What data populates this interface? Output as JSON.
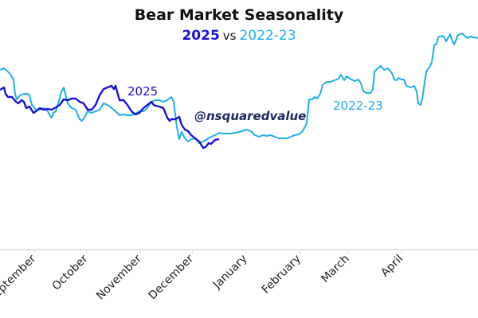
{
  "chart_data": {
    "type": "line",
    "title": "Bear Market Seasonality",
    "subtitle": {
      "series1": "2025",
      "vs": "vs",
      "series2": "2022-23"
    },
    "xlabel": "",
    "ylabel": "",
    "x_unit": "days since Aug 1 (approx.)",
    "xlim": [
      11,
      287
    ],
    "ylim": [
      0,
      300
    ],
    "grid": false,
    "x_ticks": [
      {
        "label": "September",
        "day": 31
      },
      {
        "label": "October",
        "day": 61
      },
      {
        "label": "November",
        "day": 92
      },
      {
        "label": "December",
        "day": 122
      },
      {
        "label": "January",
        "day": 153
      },
      {
        "label": "February",
        "day": 184
      },
      {
        "label": "March",
        "day": 212
      },
      {
        "label": "April",
        "day": 243
      }
    ],
    "annotations": {
      "label_2025": "2025",
      "label_2022": "2022-23",
      "watermark": "@nsquaredvalue"
    },
    "colors": {
      "s2025": "#1a12d6",
      "s2022": "#1eaee8",
      "watermark": "#1b2a5e"
    },
    "series": [
      {
        "name": "2022-23",
        "points": [
          [
            11,
            226
          ],
          [
            13.3,
            228
          ],
          [
            16.5,
            222
          ],
          [
            18.8,
            214
          ],
          [
            19.7,
            196
          ],
          [
            20.7,
            189
          ],
          [
            22.5,
            194
          ],
          [
            24.8,
            196
          ],
          [
            27.1,
            196
          ],
          [
            28,
            194
          ],
          [
            29.4,
            182
          ],
          [
            31.7,
            176
          ],
          [
            34,
            176
          ],
          [
            36.3,
            178
          ],
          [
            38.6,
            174
          ],
          [
            40,
            168
          ],
          [
            40.9,
            166
          ],
          [
            41.8,
            172
          ],
          [
            43.2,
            174
          ],
          [
            44.6,
            184
          ],
          [
            46.4,
            198
          ],
          [
            47.8,
            204
          ],
          [
            48.7,
            196
          ],
          [
            50.1,
            184
          ],
          [
            52.4,
            178
          ],
          [
            54.7,
            176
          ],
          [
            57,
            164
          ],
          [
            58.4,
            162
          ],
          [
            60.2,
            168
          ],
          [
            61.6,
            174
          ],
          [
            63.9,
            172
          ],
          [
            66.2,
            174
          ],
          [
            68.5,
            176
          ],
          [
            70.8,
            184
          ],
          [
            73.1,
            182
          ],
          [
            75.4,
            178
          ],
          [
            77.7,
            174
          ],
          [
            80,
            169
          ],
          [
            82.3,
            170
          ],
          [
            84.6,
            169
          ],
          [
            86.9,
            169
          ],
          [
            89.2,
            171
          ],
          [
            91.5,
            174
          ],
          [
            93.8,
            174
          ],
          [
            96.1,
            178
          ],
          [
            98.4,
            186
          ],
          [
            100.7,
            188
          ],
          [
            103,
            188
          ],
          [
            105.3,
            186
          ],
          [
            107.6,
            188
          ],
          [
            109.9,
            192
          ],
          [
            111.3,
            186
          ],
          [
            113.1,
            154
          ],
          [
            114.5,
            139
          ],
          [
            115.9,
            148
          ],
          [
            117.7,
            140
          ],
          [
            119.6,
            136
          ],
          [
            121.4,
            139
          ],
          [
            123.7,
            140
          ],
          [
            126,
            134
          ],
          [
            128.3,
            136
          ],
          [
            130.6,
            139
          ],
          [
            132.9,
            142
          ],
          [
            135.2,
            144
          ],
          [
            137.5,
            147
          ],
          [
            139.8,
            146
          ],
          [
            144.4,
            146
          ],
          [
            149,
            148
          ],
          [
            153.6,
            151
          ],
          [
            155.9,
            149
          ],
          [
            158.2,
            144
          ],
          [
            160.5,
            142
          ],
          [
            162.8,
            144
          ],
          [
            165.1,
            143
          ],
          [
            167.4,
            144
          ],
          [
            169.7,
            142
          ],
          [
            172,
            140
          ],
          [
            176.6,
            140
          ],
          [
            178.9,
            142
          ],
          [
            181.2,
            144
          ],
          [
            183.5,
            145
          ],
          [
            185.8,
            149
          ],
          [
            188.1,
            159
          ],
          [
            189.5,
            189
          ],
          [
            191.3,
            189
          ],
          [
            192.7,
            192
          ],
          [
            194.1,
            190
          ],
          [
            195.9,
            196
          ],
          [
            197.3,
            207
          ],
          [
            199.6,
            211
          ],
          [
            201.9,
            211
          ],
          [
            204.2,
            213
          ],
          [
            206.5,
            215
          ],
          [
            207.9,
            220
          ],
          [
            209.7,
            213
          ],
          [
            211.1,
            218
          ],
          [
            212.5,
            216
          ],
          [
            215.7,
            212
          ],
          [
            218,
            214
          ],
          [
            219.4,
            209
          ],
          [
            220.8,
            199
          ],
          [
            222.6,
            197
          ],
          [
            224.9,
            197
          ],
          [
            226.3,
            202
          ],
          [
            227.2,
            224
          ],
          [
            228.1,
            226
          ],
          [
            229.5,
            229
          ],
          [
            230.9,
            231
          ],
          [
            232.7,
            226
          ],
          [
            235,
            228
          ],
          [
            237.3,
            222
          ],
          [
            238.7,
            214
          ],
          [
            240.1,
            213
          ],
          [
            241,
            216
          ],
          [
            242.8,
            214
          ],
          [
            244.2,
            214
          ],
          [
            245.6,
            206
          ],
          [
            247.9,
            204
          ],
          [
            250.2,
            206
          ],
          [
            251.6,
            199
          ],
          [
            252.5,
            184
          ],
          [
            253.9,
            182
          ],
          [
            254.8,
            189
          ],
          [
            257.1,
            224
          ],
          [
            259.4,
            231
          ],
          [
            260.3,
            236
          ],
          [
            261.7,
            257
          ],
          [
            263.1,
            259
          ],
          [
            264,
            267
          ],
          [
            266.3,
            269
          ],
          [
            267.7,
            267
          ],
          [
            268.6,
            262
          ],
          [
            270.9,
            271
          ],
          [
            272.3,
            262
          ],
          [
            273.2,
            258
          ],
          [
            275.5,
            270
          ],
          [
            277.8,
            272
          ],
          [
            279.2,
            269
          ],
          [
            281,
            266
          ],
          [
            282.4,
            268
          ],
          [
            284.7,
            267
          ],
          [
            287,
            266
          ]
        ]
      },
      {
        "name": "2025",
        "points": [
          [
            11,
            201
          ],
          [
            13.3,
            204
          ],
          [
            14.2,
            196
          ],
          [
            15.6,
            192
          ],
          [
            17.9,
            192
          ],
          [
            20.2,
            186
          ],
          [
            21.6,
            184
          ],
          [
            23.4,
            188
          ],
          [
            24.8,
            186
          ],
          [
            26.2,
            178
          ],
          [
            28,
            180
          ],
          [
            30.3,
            172
          ],
          [
            31.7,
            174
          ],
          [
            34,
            178
          ],
          [
            36.3,
            176
          ],
          [
            38.6,
            177
          ],
          [
            40.9,
            176
          ],
          [
            43.2,
            179
          ],
          [
            45.5,
            182
          ],
          [
            47.8,
            189
          ],
          [
            50.1,
            188
          ],
          [
            52.4,
            190
          ],
          [
            54.7,
            190
          ],
          [
            57,
            186
          ],
          [
            59.3,
            184
          ],
          [
            61.6,
            176
          ],
          [
            63.9,
            176
          ],
          [
            66.2,
            182
          ],
          [
            68.5,
            194
          ],
          [
            70.8,
            202
          ],
          [
            73.1,
            204
          ],
          [
            75.4,
            206
          ],
          [
            76.8,
            202
          ],
          [
            77.7,
            206
          ],
          [
            80,
            188
          ],
          [
            82.3,
            188
          ],
          [
            84.6,
            182
          ],
          [
            86.9,
            174
          ],
          [
            89.2,
            170
          ],
          [
            91.5,
            172
          ],
          [
            93.8,
            178
          ],
          [
            96.1,
            182
          ],
          [
            98.4,
            186
          ],
          [
            99.8,
            182
          ],
          [
            100.7,
            181
          ],
          [
            103,
            180
          ],
          [
            105.3,
            178
          ],
          [
            107.6,
            166
          ],
          [
            109,
            162
          ],
          [
            109.9,
            164
          ],
          [
            112.2,
            164
          ],
          [
            114.5,
            167
          ],
          [
            115.9,
            157
          ],
          [
            117.7,
            151
          ],
          [
            119.6,
            149
          ],
          [
            121.4,
            144
          ],
          [
            123.7,
            140
          ],
          [
            126,
            136
          ],
          [
            128.3,
            128
          ],
          [
            129.7,
            129
          ],
          [
            131.5,
            134
          ],
          [
            132.9,
            133
          ],
          [
            135.2,
            138
          ],
          [
            137.5,
            139
          ]
        ]
      }
    ]
  }
}
